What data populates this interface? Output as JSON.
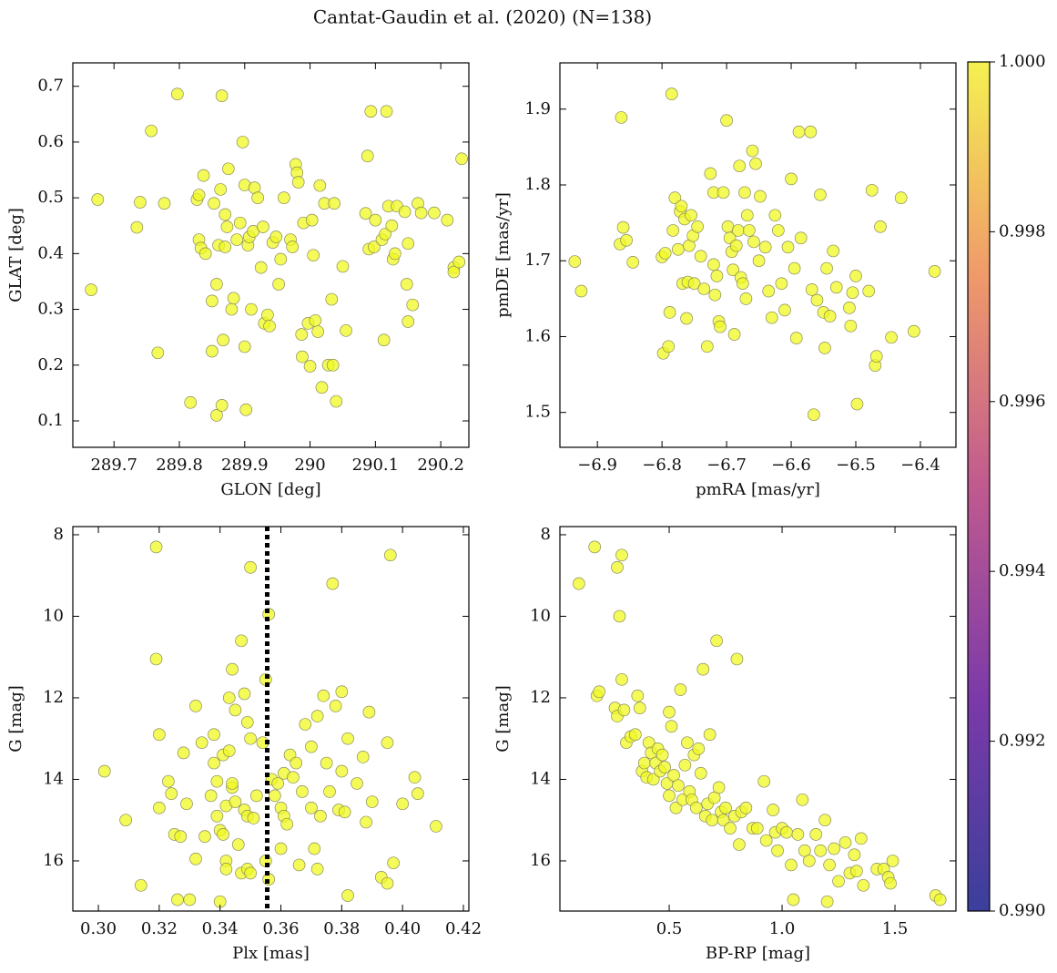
{
  "title": "Cantat-Gaudin et al. (2020) (N=138)",
  "colorbar": {
    "lim": [
      0.99,
      1.0
    ],
    "ticks": [
      {
        "value": 0.99,
        "label": "0.990"
      },
      {
        "value": 0.992,
        "label": "0.992"
      },
      {
        "value": 0.994,
        "label": "0.994"
      },
      {
        "value": 0.996,
        "label": "0.996"
      },
      {
        "value": 0.998,
        "label": "0.998"
      },
      {
        "value": 1.0,
        "label": "1.000"
      }
    ]
  },
  "chart_data": [
    {
      "type": "scatter",
      "x_label": "GLON [deg]",
      "y_label": "GLAT [deg]",
      "color": "#f0f921",
      "xlim": [
        289.637,
        290.243
      ],
      "ylim": [
        0.0526,
        0.742
      ],
      "xticks": [
        289.7,
        289.8,
        289.9,
        290.0,
        290.1,
        290.2
      ],
      "yticks": [
        0.1,
        0.2,
        0.3,
        0.4,
        0.5,
        0.6,
        0.7
      ],
      "x": [
        289.665,
        289.675,
        289.735,
        289.74,
        289.757,
        289.767,
        289.777,
        289.797,
        289.817,
        289.827,
        289.83,
        289.83,
        289.833,
        289.837,
        289.84,
        289.85,
        289.85,
        289.853,
        289.857,
        289.857,
        289.86,
        289.863,
        289.865,
        289.865,
        289.867,
        289.87,
        289.87,
        289.873,
        289.875,
        289.88,
        289.883,
        289.888,
        289.893,
        289.897,
        289.9,
        289.9,
        289.902,
        289.905,
        289.907,
        289.91,
        289.913,
        289.915,
        289.92,
        289.925,
        289.928,
        289.93,
        289.935,
        289.938,
        289.943,
        289.948,
        289.952,
        289.955,
        289.96,
        289.97,
        289.973,
        289.978,
        289.98,
        289.982,
        289.987,
        289.988,
        289.99,
        289.997,
        290.0,
        290.003,
        290.005,
        290.008,
        290.012,
        290.015,
        290.018,
        290.022,
        290.028,
        290.033,
        290.035,
        290.037,
        290.04,
        290.05,
        290.055,
        290.085,
        290.088,
        290.09,
        290.093,
        290.098,
        290.1,
        290.11,
        290.113,
        290.115,
        290.117,
        290.12,
        290.125,
        290.127,
        290.13,
        290.133,
        290.145,
        290.148,
        290.15,
        290.15,
        290.157,
        290.165,
        290.17,
        290.19,
        290.21,
        290.22,
        290.22,
        290.228,
        290.232
      ],
      "values": [
        0.335,
        0.497,
        0.447,
        0.492,
        0.62,
        0.222,
        0.49,
        0.686,
        0.133,
        0.497,
        0.505,
        0.425,
        0.41,
        0.54,
        0.4,
        0.225,
        0.315,
        0.49,
        0.11,
        0.345,
        0.415,
        0.515,
        0.683,
        0.128,
        0.245,
        0.412,
        0.47,
        0.448,
        0.552,
        0.3,
        0.32,
        0.425,
        0.455,
        0.6,
        0.523,
        0.233,
        0.12,
        0.415,
        0.43,
        0.3,
        0.44,
        0.518,
        0.5,
        0.375,
        0.448,
        0.275,
        0.29,
        0.27,
        0.42,
        0.43,
        0.345,
        0.39,
        0.5,
        0.425,
        0.412,
        0.56,
        0.545,
        0.528,
        0.255,
        0.215,
        0.455,
        0.275,
        0.198,
        0.46,
        0.397,
        0.28,
        0.26,
        0.522,
        0.16,
        0.49,
        0.2,
        0.318,
        0.2,
        0.49,
        0.135,
        0.377,
        0.262,
        0.472,
        0.575,
        0.408,
        0.655,
        0.412,
        0.46,
        0.425,
        0.245,
        0.435,
        0.655,
        0.485,
        0.45,
        0.39,
        0.4,
        0.485,
        0.475,
        0.345,
        0.418,
        0.278,
        0.308,
        0.49,
        0.473,
        0.473,
        0.46,
        0.375,
        0.367,
        0.385,
        0.57
      ]
    },
    {
      "type": "scatter",
      "x_label": "pmRA [mas/yr]",
      "y_label": "pmDE [mas/yr]",
      "color": "#f0f921",
      "xlim": [
        -6.958,
        -6.345
      ],
      "ylim": [
        1.454,
        1.961
      ],
      "xticks": [
        {
          "value": -6.9,
          "label": "−6.9"
        },
        {
          "value": -6.8,
          "label": "−6.8"
        },
        {
          "value": -6.7,
          "label": "−6.7"
        },
        {
          "value": -6.6,
          "label": "−6.6"
        },
        {
          "value": -6.5,
          "label": "−6.5"
        },
        {
          "value": -6.4,
          "label": "−6.4"
        }
      ],
      "yticks": [
        1.5,
        1.6,
        1.7,
        1.8,
        1.9
      ],
      "x": [
        -6.935,
        -6.925,
        -6.865,
        -6.863,
        -6.86,
        -6.855,
        -6.845,
        -6.8,
        -6.798,
        -6.795,
        -6.79,
        -6.788,
        -6.785,
        -6.783,
        -6.78,
        -6.775,
        -6.772,
        -6.77,
        -6.768,
        -6.765,
        -6.762,
        -6.76,
        -6.758,
        -6.755,
        -6.752,
        -6.75,
        -6.745,
        -6.74,
        -6.735,
        -6.73,
        -6.725,
        -6.72,
        -6.72,
        -6.718,
        -6.715,
        -6.712,
        -6.71,
        -6.705,
        -6.7,
        -6.698,
        -6.695,
        -6.692,
        -6.69,
        -6.688,
        -6.685,
        -6.682,
        -6.68,
        -6.678,
        -6.675,
        -6.672,
        -6.67,
        -6.668,
        -6.665,
        -6.66,
        -6.658,
        -6.655,
        -6.65,
        -6.648,
        -6.64,
        -6.635,
        -6.63,
        -6.625,
        -6.62,
        -6.615,
        -6.61,
        -6.605,
        -6.6,
        -6.595,
        -6.592,
        -6.588,
        -6.585,
        -6.57,
        -6.568,
        -6.565,
        -6.56,
        -6.555,
        -6.55,
        -6.548,
        -6.545,
        -6.54,
        -6.535,
        -6.53,
        -6.51,
        -6.508,
        -6.505,
        -6.5,
        -6.498,
        -6.48,
        -6.475,
        -6.47,
        -6.468,
        -6.462,
        -6.445,
        -6.43,
        -6.41,
        -6.378
      ],
      "values": [
        1.699,
        1.66,
        1.722,
        1.889,
        1.744,
        1.727,
        1.698,
        1.705,
        1.578,
        1.71,
        1.587,
        1.632,
        1.92,
        1.74,
        1.783,
        1.715,
        1.765,
        1.772,
        1.67,
        1.755,
        1.624,
        1.672,
        1.72,
        1.76,
        1.733,
        1.67,
        1.745,
        1.706,
        1.663,
        1.587,
        1.815,
        1.695,
        1.79,
        1.655,
        1.68,
        1.62,
        1.613,
        1.79,
        1.885,
        1.745,
        1.73,
        1.712,
        1.688,
        1.603,
        1.72,
        1.74,
        1.825,
        1.678,
        1.67,
        1.79,
        1.65,
        1.76,
        1.74,
        1.845,
        1.725,
        1.828,
        1.7,
        1.785,
        1.718,
        1.66,
        1.625,
        1.76,
        1.74,
        1.67,
        1.635,
        1.718,
        1.808,
        1.69,
        1.598,
        1.87,
        1.73,
        1.87,
        1.662,
        1.497,
        1.648,
        1.787,
        1.632,
        1.585,
        1.69,
        1.627,
        1.713,
        1.665,
        1.638,
        1.614,
        1.658,
        1.68,
        1.511,
        1.66,
        1.793,
        1.562,
        1.574,
        1.745,
        1.599,
        1.783,
        1.607,
        1.686
      ]
    },
    {
      "type": "scatter",
      "x_label": "Plx [mas]",
      "y_label": "G [mag]",
      "color": "#f0f921",
      "vline": 0.3555,
      "xlim": [
        0.2916,
        0.4218
      ],
      "ylim": [
        17.23,
        7.8
      ],
      "xticks": [
        {
          "value": 0.3,
          "label": "0.30"
        },
        {
          "value": 0.32,
          "label": "0.32"
        },
        {
          "value": 0.34,
          "label": "0.34"
        },
        {
          "value": 0.36,
          "label": "0.36"
        },
        {
          "value": 0.38,
          "label": "0.38"
        },
        {
          "value": 0.4,
          "label": "0.40"
        },
        {
          "value": 0.42,
          "label": "0.42"
        }
      ],
      "yticks": [
        8,
        10,
        12,
        14,
        16
      ],
      "x": [
        0.302,
        0.309,
        0.314,
        0.319,
        0.319,
        0.32,
        0.32,
        0.323,
        0.324,
        0.325,
        0.326,
        0.327,
        0.328,
        0.329,
        0.33,
        0.332,
        0.332,
        0.334,
        0.335,
        0.337,
        0.338,
        0.338,
        0.339,
        0.339,
        0.34,
        0.34,
        0.341,
        0.341,
        0.342,
        0.342,
        0.342,
        0.343,
        0.343,
        0.344,
        0.344,
        0.344,
        0.345,
        0.345,
        0.346,
        0.347,
        0.347,
        0.348,
        0.348,
        0.349,
        0.349,
        0.349,
        0.35,
        0.35,
        0.35,
        0.351,
        0.352,
        0.354,
        0.355,
        0.355,
        0.356,
        0.356,
        0.357,
        0.358,
        0.359,
        0.36,
        0.36,
        0.361,
        0.361,
        0.362,
        0.363,
        0.364,
        0.365,
        0.366,
        0.367,
        0.368,
        0.37,
        0.37,
        0.371,
        0.372,
        0.372,
        0.373,
        0.374,
        0.375,
        0.376,
        0.377,
        0.378,
        0.379,
        0.38,
        0.38,
        0.381,
        0.382,
        0.382,
        0.385,
        0.387,
        0.388,
        0.389,
        0.39,
        0.393,
        0.395,
        0.395,
        0.396,
        0.397,
        0.4,
        0.404,
        0.405,
        0.411
      ],
      "values": [
        13.8,
        15.0,
        16.6,
        8.3,
        11.05,
        12.9,
        14.7,
        14.05,
        14.35,
        15.35,
        16.95,
        15.4,
        13.35,
        14.6,
        16.95,
        12.2,
        15.95,
        13.1,
        15.4,
        14.4,
        13.6,
        12.9,
        14.05,
        14.9,
        15.25,
        17.0,
        13.4,
        15.35,
        16.0,
        16.2,
        14.65,
        12.0,
        13.3,
        14.2,
        14.1,
        11.3,
        12.3,
        14.55,
        15.6,
        16.3,
        10.6,
        11.9,
        14.75,
        12.6,
        14.9,
        16.2,
        8.8,
        13.0,
        16.3,
        14.95,
        14.4,
        13.1,
        11.55,
        16.0,
        9.95,
        16.45,
        14.0,
        14.4,
        14.1,
        15.7,
        14.7,
        14.9,
        13.85,
        15.1,
        13.4,
        13.95,
        13.6,
        16.1,
        14.3,
        12.65,
        13.2,
        14.7,
        15.7,
        12.45,
        16.2,
        14.9,
        11.95,
        13.6,
        14.3,
        9.2,
        12.2,
        14.75,
        13.8,
        11.85,
        14.8,
        16.85,
        13.0,
        14.1,
        13.45,
        15.05,
        12.35,
        14.55,
        16.4,
        16.55,
        13.1,
        8.5,
        16.05,
        14.6,
        13.95,
        14.35,
        15.15
      ]
    },
    {
      "type": "scatter",
      "x_label": "BP-RP [mag]",
      "y_label": "G [mag]",
      "color": "#f0f921",
      "xlim": [
        0.016,
        1.77
      ],
      "ylim": [
        17.23,
        7.8
      ],
      "xticks": [
        0.5,
        {
          "value": 1.0,
          "label": "1.0"
        },
        1.5
      ],
      "yticks": [
        8,
        10,
        12,
        14,
        16
      ],
      "x": [
        0.1,
        0.17,
        0.18,
        0.19,
        0.26,
        0.27,
        0.27,
        0.28,
        0.29,
        0.29,
        0.3,
        0.31,
        0.33,
        0.35,
        0.36,
        0.37,
        0.38,
        0.39,
        0.4,
        0.41,
        0.42,
        0.43,
        0.44,
        0.45,
        0.46,
        0.47,
        0.48,
        0.49,
        0.5,
        0.5,
        0.51,
        0.52,
        0.53,
        0.54,
        0.55,
        0.56,
        0.57,
        0.58,
        0.59,
        0.6,
        0.61,
        0.62,
        0.63,
        0.64,
        0.65,
        0.66,
        0.67,
        0.68,
        0.69,
        0.7,
        0.71,
        0.72,
        0.73,
        0.74,
        0.75,
        0.77,
        0.79,
        0.8,
        0.81,
        0.82,
        0.84,
        0.87,
        0.89,
        0.92,
        0.93,
        0.96,
        0.97,
        0.98,
        1.0,
        1.02,
        1.04,
        1.05,
        1.07,
        1.09,
        1.1,
        1.12,
        1.15,
        1.17,
        1.19,
        1.2,
        1.21,
        1.23,
        1.25,
        1.28,
        1.3,
        1.32,
        1.33,
        1.35,
        1.36,
        1.42,
        1.45,
        1.47,
        1.48,
        1.49,
        1.68,
        1.7
      ],
      "values": [
        9.2,
        8.3,
        11.95,
        11.85,
        12.25,
        12.45,
        8.8,
        10.0,
        8.5,
        11.55,
        12.3,
        13.1,
        12.95,
        12.9,
        11.95,
        12.25,
        13.8,
        13.6,
        13.95,
        13.1,
        13.35,
        14.0,
        13.6,
        13.25,
        13.8,
        13.4,
        13.7,
        14.1,
        14.4,
        12.35,
        12.7,
        13.9,
        14.7,
        14.15,
        11.8,
        14.5,
        13.65,
        13.1,
        14.3,
        14.5,
        13.4,
        14.7,
        13.25,
        13.85,
        11.3,
        14.9,
        14.6,
        12.9,
        15.0,
        14.45,
        10.6,
        14.2,
        14.8,
        15.0,
        14.7,
        15.2,
        14.9,
        11.05,
        15.6,
        14.8,
        14.7,
        15.2,
        15.2,
        14.05,
        15.5,
        14.75,
        15.3,
        15.75,
        15.2,
        15.3,
        16.1,
        16.95,
        15.35,
        14.5,
        15.75,
        16.0,
        15.35,
        15.75,
        15.0,
        17.0,
        16.1,
        15.7,
        16.5,
        15.55,
        16.3,
        15.85,
        16.25,
        15.45,
        16.6,
        16.2,
        16.2,
        16.4,
        16.55,
        16.0,
        16.85,
        16.95
      ]
    }
  ]
}
